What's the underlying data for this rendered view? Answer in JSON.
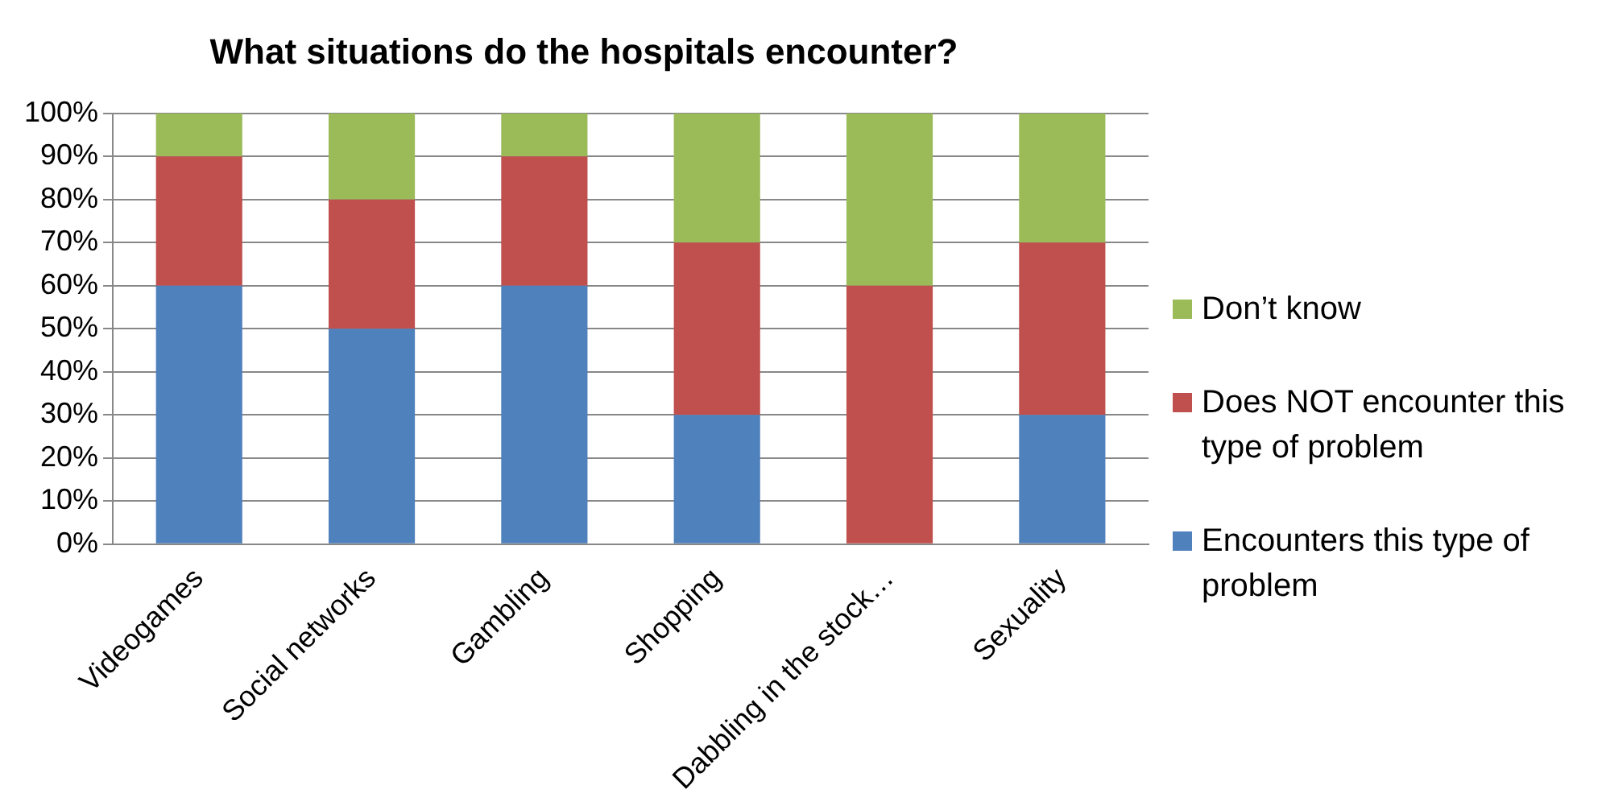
{
  "chart_data": {
    "type": "bar",
    "title": "What situations do the hospitals encounter?",
    "categories": [
      "Videogames",
      "Social networks",
      "Gambling",
      "Shopping",
      "Dabbling in the stock…",
      "Sexuality"
    ],
    "stacked": true,
    "series": [
      {
        "name": "Encounters this type of problem",
        "color": "#4f81bd",
        "values": [
          60,
          50,
          60,
          30,
          0,
          30
        ]
      },
      {
        "name": "Does NOT encounter this type of problem",
        "color": "#c0504d",
        "values": [
          30,
          30,
          30,
          40,
          60,
          40
        ]
      },
      {
        "name": "Don’t know",
        "color": "#9bbb59",
        "values": [
          10,
          20,
          10,
          30,
          40,
          30
        ]
      }
    ],
    "ylim": [
      0,
      100
    ],
    "yticks": [
      {
        "value": 0,
        "label": "0%"
      },
      {
        "value": 10,
        "label": "10%"
      },
      {
        "value": 20,
        "label": "20%"
      },
      {
        "value": 30,
        "label": "30%"
      },
      {
        "value": 40,
        "label": "40%"
      },
      {
        "value": 50,
        "label": "50%"
      },
      {
        "value": 60,
        "label": "60%"
      },
      {
        "value": 70,
        "label": "70%"
      },
      {
        "value": 80,
        "label": "80%"
      },
      {
        "value": 90,
        "label": "90%"
      },
      {
        "value": 100,
        "label": "100%"
      }
    ],
    "grid": "y",
    "legend": "right"
  }
}
